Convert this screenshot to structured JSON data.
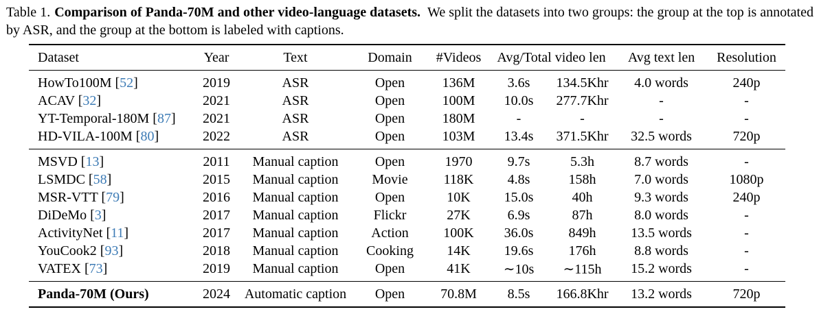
{
  "caption": {
    "label": "Table 1.",
    "bold": "Comparison of Panda-70M and other video-language datasets.",
    "rest": "We split the datasets into two groups: the group at the top is annotated by ASR, and the group at the bottom is labeled with captions."
  },
  "colors": {
    "cite_link": "#3d7bb5",
    "text": "#000000",
    "background": "#ffffff"
  },
  "table": {
    "brackets": {
      "open": "[",
      "close": "]"
    },
    "headers": [
      "Dataset",
      "Year",
      "Text",
      "Domain",
      "#Videos",
      "Avg/Total video len",
      "Avg text len",
      "Resolution"
    ],
    "groups": [
      {
        "group_label": "annotated by ASR",
        "rows": [
          {
            "name": "HowTo100M",
            "cite": "52",
            "bold": false,
            "year": "2019",
            "text": "ASR",
            "domain": "Open",
            "videos": "136M",
            "avg_len": "3.6s",
            "total_len": "134.5Khr",
            "text_len": "4.0 words",
            "resolution": "240p"
          },
          {
            "name": "ACAV",
            "cite": "32",
            "bold": false,
            "year": "2021",
            "text": "ASR",
            "domain": "Open",
            "videos": "100M",
            "avg_len": "10.0s",
            "total_len": "277.7Khr",
            "text_len": "-",
            "resolution": "-"
          },
          {
            "name": "YT-Temporal-180M",
            "cite": "87",
            "bold": false,
            "year": "2021",
            "text": "ASR",
            "domain": "Open",
            "videos": "180M",
            "avg_len": "-",
            "total_len": "-",
            "text_len": "-",
            "resolution": "-"
          },
          {
            "name": "HD-VILA-100M",
            "cite": "80",
            "bold": false,
            "year": "2022",
            "text": "ASR",
            "domain": "Open",
            "videos": "103M",
            "avg_len": "13.4s",
            "total_len": "371.5Khr",
            "text_len": "32.5 words",
            "resolution": "720p"
          }
        ]
      },
      {
        "group_label": "labeled with captions",
        "rows": [
          {
            "name": "MSVD",
            "cite": "13",
            "bold": false,
            "year": "2011",
            "text": "Manual caption",
            "domain": "Open",
            "videos": "1970",
            "avg_len": "9.7s",
            "total_len": "5.3h",
            "text_len": "8.7 words",
            "resolution": "-"
          },
          {
            "name": "LSMDC",
            "cite": "58",
            "bold": false,
            "year": "2015",
            "text": "Manual caption",
            "domain": "Movie",
            "videos": "118K",
            "avg_len": "4.8s",
            "total_len": "158h",
            "text_len": "7.0 words",
            "resolution": "1080p"
          },
          {
            "name": "MSR-VTT",
            "cite": "79",
            "bold": false,
            "year": "2016",
            "text": "Manual caption",
            "domain": "Open",
            "videos": "10K",
            "avg_len": "15.0s",
            "total_len": "40h",
            "text_len": "9.3 words",
            "resolution": "240p"
          },
          {
            "name": "DiDeMo",
            "cite": "3",
            "bold": false,
            "year": "2017",
            "text": "Manual caption",
            "domain": "Flickr",
            "videos": "27K",
            "avg_len": "6.9s",
            "total_len": "87h",
            "text_len": "8.0 words",
            "resolution": "-"
          },
          {
            "name": "ActivityNet",
            "cite": "11",
            "bold": false,
            "year": "2017",
            "text": "Manual caption",
            "domain": "Action",
            "videos": "100K",
            "avg_len": "36.0s",
            "total_len": "849h",
            "text_len": "13.5 words",
            "resolution": "-"
          },
          {
            "name": "YouCook2",
            "cite": "93",
            "bold": false,
            "year": "2018",
            "text": "Manual caption",
            "domain": "Cooking",
            "videos": "14K",
            "avg_len": "19.6s",
            "total_len": "176h",
            "text_len": "8.8 words",
            "resolution": "-"
          },
          {
            "name": "VATEX",
            "cite": "73",
            "bold": false,
            "year": "2019",
            "text": "Manual caption",
            "domain": "Open",
            "videos": "41K",
            "avg_len": "∼10s",
            "total_len": "∼115h",
            "text_len": "15.2 words",
            "resolution": "-"
          }
        ]
      },
      {
        "group_label": "ours",
        "rows": [
          {
            "name": "Panda-70M (Ours)",
            "cite": "",
            "bold": true,
            "year": "2024",
            "text": "Automatic caption",
            "domain": "Open",
            "videos": "70.8M",
            "avg_len": "8.5s",
            "total_len": "166.8Khr",
            "text_len": "13.2 words",
            "resolution": "720p"
          }
        ]
      }
    ]
  }
}
